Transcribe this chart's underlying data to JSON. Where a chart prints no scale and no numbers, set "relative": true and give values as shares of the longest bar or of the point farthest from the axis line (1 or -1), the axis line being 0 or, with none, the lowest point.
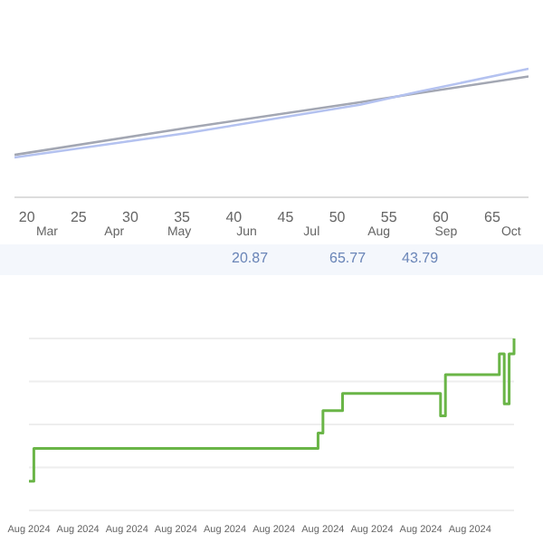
{
  "chart_data": [
    {
      "type": "line",
      "relative": true,
      "xlim": [
        18.8,
        68.5
      ],
      "xticks": [
        20,
        25,
        30,
        35,
        40,
        45,
        50,
        55,
        60,
        65
      ],
      "x2lim": [
        "--02-15",
        "--10-09"
      ],
      "x2ticks": [
        {
          "value": "--03-01",
          "label": "Mar"
        },
        {
          "value": "--04-01",
          "label": "Apr"
        },
        {
          "value": "--05-01",
          "label": "May"
        },
        {
          "value": "--06-01",
          "label": "Jun"
        },
        {
          "value": "--07-01",
          "label": "Jul"
        },
        {
          "value": "--08-01",
          "label": "Aug"
        },
        {
          "value": "--09-01",
          "label": "Sep"
        },
        {
          "value": "--10-01",
          "label": "Oct"
        }
      ],
      "series": [
        {
          "color": "#a3a7b3",
          "x": [
            18.8,
            35.5,
            52.2,
            57.8,
            68.5
          ],
          "values": [
            0.33,
            0.54,
            0.74,
            0.81,
            0.94
          ]
        },
        {
          "color": "#b4c2f0",
          "x": [
            18.8,
            35.5,
            52.2,
            57.8,
            68.5
          ],
          "values": [
            0.31,
            0.5,
            0.72,
            0.82,
            1
          ]
        }
      ],
      "annotations": [
        "20.87",
        "65.77",
        "43.79"
      ]
    },
    {
      "type": "step",
      "relative": true,
      "grid": "y",
      "categories": [
        "Aug 2024",
        null,
        null,
        null,
        null,
        null,
        null,
        null,
        null,
        null,
        "Aug 2024",
        null,
        null,
        null,
        null,
        null,
        null,
        null,
        null,
        null,
        "Aug 2024",
        null,
        null,
        null,
        null,
        null,
        null,
        null,
        null,
        null,
        "Aug 2024",
        null,
        null,
        null,
        null,
        null,
        null,
        null,
        null,
        null,
        "Aug 2024",
        null,
        null,
        null,
        null,
        null,
        null,
        null,
        null,
        null,
        "Aug 2024",
        null,
        null,
        null,
        null,
        null,
        null,
        null,
        null,
        null,
        "Aug 2024",
        null,
        null,
        null,
        null,
        null,
        null,
        null,
        null,
        null,
        "Aug 2024",
        null,
        null,
        null,
        null,
        null,
        null,
        null,
        null,
        null,
        "Aug 2024",
        null,
        null,
        null,
        null,
        null,
        null,
        null,
        null,
        null,
        "Aug 2024",
        null,
        null,
        null,
        null,
        null,
        null,
        null,
        null,
        null
      ],
      "series": [
        {
          "color": "#6ab547",
          "values": [
            0.17,
            0.36,
            0.36,
            0.36,
            0.36,
            0.36,
            0.36,
            0.36,
            0.36,
            0.36,
            0.36,
            0.36,
            0.36,
            0.36,
            0.36,
            0.36,
            0.36,
            0.36,
            0.36,
            0.36,
            0.36,
            0.36,
            0.36,
            0.36,
            0.36,
            0.36,
            0.36,
            0.36,
            0.36,
            0.36,
            0.36,
            0.36,
            0.36,
            0.36,
            0.36,
            0.36,
            0.36,
            0.36,
            0.36,
            0.36,
            0.36,
            0.36,
            0.36,
            0.36,
            0.36,
            0.36,
            0.36,
            0.36,
            0.36,
            0.36,
            0.36,
            0.36,
            0.36,
            0.36,
            0.36,
            0.36,
            0.36,
            0.36,
            0.36,
            0.45,
            0.58,
            0.58,
            0.58,
            0.58,
            0.68,
            0.68,
            0.68,
            0.68,
            0.68,
            0.68,
            0.68,
            0.68,
            0.68,
            0.68,
            0.68,
            0.68,
            0.68,
            0.68,
            0.68,
            0.68,
            0.68,
            0.68,
            0.68,
            0.68,
            0.55,
            0.79,
            0.79,
            0.79,
            0.79,
            0.79,
            0.79,
            0.79,
            0.79,
            0.79,
            0.79,
            0.79,
            0.91,
            0.62,
            0.91,
            1
          ]
        }
      ]
    }
  ]
}
